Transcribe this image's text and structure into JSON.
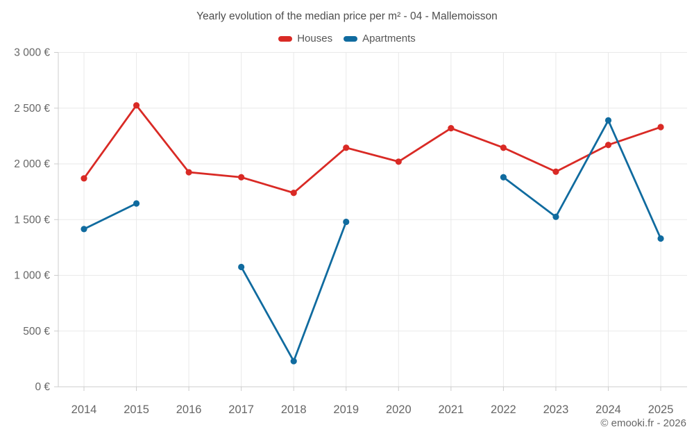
{
  "chart": {
    "title": "Yearly evolution of the median price per m² - 04 - Mallemoisson",
    "footer": "© emooki.fr - 2026",
    "colors": {
      "houses": "#d92a25",
      "apartments": "#106b9f",
      "grid_line": "#e9e9e9",
      "axis_line": "#cccccc",
      "tick_label": "#666666",
      "title_text": "#4d4d4d"
    }
  },
  "chart_data": {
    "type": "line",
    "title": "Yearly evolution of the median price per m² - 04 - Mallemoisson",
    "xlabel": "",
    "ylabel": "",
    "categories": [
      "2014",
      "2015",
      "2016",
      "2017",
      "2018",
      "2019",
      "2020",
      "2021",
      "2022",
      "2023",
      "2024",
      "2025"
    ],
    "series": [
      {
        "name": "Houses",
        "color": "#d92a25",
        "values": [
          1870,
          2525,
          1925,
          1880,
          1740,
          2145,
          2020,
          2320,
          2145,
          1930,
          2170,
          2330
        ]
      },
      {
        "name": "Apartments",
        "color": "#106b9f",
        "values": [
          1415,
          1645,
          null,
          1075,
          230,
          1480,
          null,
          null,
          1880,
          1525,
          2390,
          1330
        ]
      }
    ],
    "ylim": [
      0,
      3000
    ],
    "yticks": [
      0,
      500,
      1000,
      1500,
      2000,
      2500,
      3000
    ],
    "ytick_labels": [
      "0 €",
      "500 €",
      "1 000 €",
      "1 500 €",
      "2 000 €",
      "2 500 €",
      "3 000 €"
    ],
    "grid": true,
    "legend_position": "top",
    "markers": true
  }
}
